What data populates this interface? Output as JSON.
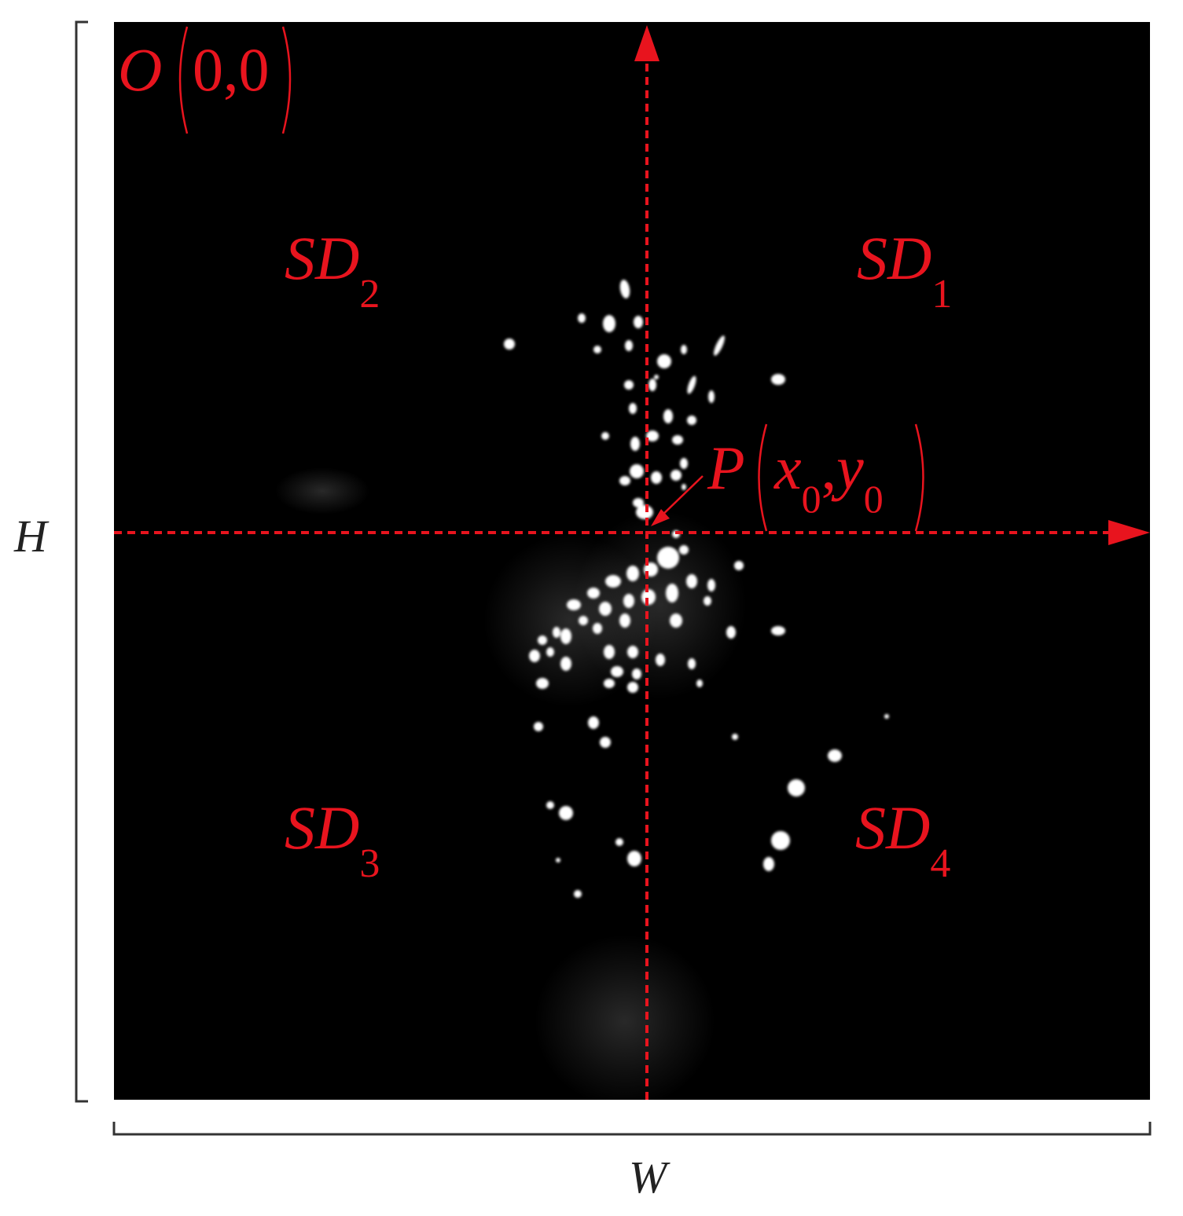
{
  "colors": {
    "annotation": "#e8141e",
    "background": "#000000",
    "page": "#ffffff",
    "bracket": "#333333",
    "spots": "#ffffff"
  },
  "origin": {
    "letter": "O",
    "coords": "0,0"
  },
  "point": {
    "letter": "P",
    "x": "x",
    "x_sub": "0",
    "sep": ",",
    "y": "y",
    "y_sub": "0"
  },
  "regions": [
    {
      "id": "SD1",
      "main": "SD",
      "sub": "1"
    },
    {
      "id": "SD2",
      "main": "SD",
      "sub": "2"
    },
    {
      "id": "SD3",
      "main": "SD",
      "sub": "3"
    },
    {
      "id": "SD4",
      "main": "SD",
      "sub": "4"
    }
  ],
  "dimensions": {
    "height_label": "H",
    "width_label": "W"
  },
  "axes": {
    "horizontal": "dashed-arrow-right",
    "vertical": "dashed-arrow-up"
  },
  "image": {
    "content": "spark particle image",
    "style": "white spots on black"
  }
}
